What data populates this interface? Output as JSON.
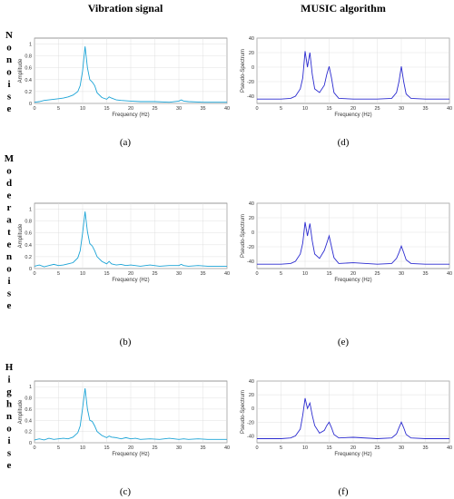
{
  "column_titles": [
    "Vibration signal",
    "MUSIC algorithm"
  ],
  "row_labels": [
    "No noise",
    "Moderate noise",
    "High noise"
  ],
  "captions": [
    "(a)",
    "(b)",
    "(c)",
    "(d)",
    "(e)",
    "(f)"
  ],
  "colors": {
    "vibration": "#1aa3d6",
    "music": "#2b2bd0"
  },
  "chart_data": [
    {
      "id": "a",
      "type": "line",
      "caption": "(a)",
      "xlabel": "Frequency (Hz)",
      "ylabel": "Amplitude",
      "xlim": [
        0,
        40
      ],
      "ylim": [
        0,
        1.1
      ],
      "xticks": [
        0,
        5,
        10,
        15,
        20,
        25,
        30,
        35,
        40
      ],
      "yticks": [
        0,
        0.2,
        0.4,
        0.6,
        0.8,
        1
      ],
      "series": [
        {
          "x": [
            0,
            1,
            2,
            3,
            4,
            5,
            6,
            7,
            8,
            9,
            9.5,
            10,
            10.5,
            11,
            11.5,
            12,
            12.5,
            13,
            14,
            15,
            15.5,
            16,
            17,
            18,
            20,
            22,
            25,
            28,
            30,
            30.5,
            31,
            32,
            35,
            38,
            40
          ],
          "y": [
            0.02,
            0.03,
            0.05,
            0.06,
            0.07,
            0.08,
            0.09,
            0.11,
            0.14,
            0.2,
            0.3,
            0.55,
            0.96,
            0.6,
            0.4,
            0.36,
            0.3,
            0.18,
            0.1,
            0.07,
            0.11,
            0.09,
            0.06,
            0.05,
            0.04,
            0.03,
            0.03,
            0.02,
            0.04,
            0.06,
            0.04,
            0.03,
            0.02,
            0.02,
            0.02
          ]
        }
      ]
    },
    {
      "id": "b",
      "type": "line",
      "caption": "(b)",
      "xlabel": "Frequency (Hz)",
      "ylabel": "Amplitude",
      "xlim": [
        0,
        40
      ],
      "ylim": [
        0,
        1.1
      ],
      "xticks": [
        0,
        5,
        10,
        15,
        20,
        25,
        30,
        35,
        40
      ],
      "yticks": [
        0,
        0.2,
        0.4,
        0.6,
        0.8,
        1
      ],
      "series": [
        {
          "x": [
            0,
            1,
            2,
            3,
            4,
            5,
            6,
            7,
            8,
            9,
            9.5,
            10,
            10.5,
            11,
            11.5,
            12,
            12.5,
            13,
            14,
            15,
            15.5,
            16,
            17,
            18,
            19,
            20,
            22,
            24,
            26,
            28,
            30,
            30.5,
            31,
            32,
            34,
            36,
            38,
            40
          ],
          "y": [
            0.04,
            0.06,
            0.03,
            0.05,
            0.07,
            0.05,
            0.06,
            0.08,
            0.1,
            0.18,
            0.3,
            0.6,
            0.96,
            0.62,
            0.42,
            0.38,
            0.3,
            0.2,
            0.12,
            0.08,
            0.12,
            0.08,
            0.06,
            0.07,
            0.05,
            0.06,
            0.04,
            0.06,
            0.04,
            0.05,
            0.05,
            0.07,
            0.05,
            0.04,
            0.05,
            0.04,
            0.04,
            0.04
          ]
        }
      ]
    },
    {
      "id": "c",
      "type": "line",
      "caption": "(c)",
      "xlabel": "Frequency (Hz)",
      "ylabel": "Amplitude",
      "xlim": [
        0,
        40
      ],
      "ylim": [
        0,
        1.1
      ],
      "xticks": [
        0,
        5,
        10,
        15,
        20,
        25,
        30,
        35,
        40
      ],
      "yticks": [
        0,
        0.2,
        0.4,
        0.6,
        0.8,
        1
      ],
      "series": [
        {
          "x": [
            0,
            1,
            2,
            3,
            4,
            5,
            6,
            7,
            8,
            9,
            9.5,
            10,
            10.5,
            11,
            11.5,
            12,
            12.5,
            13,
            14,
            15,
            15.5,
            16,
            17,
            18,
            19,
            20,
            21,
            22,
            24,
            26,
            28,
            30,
            31,
            32,
            34,
            36,
            38,
            40
          ],
          "y": [
            0.05,
            0.07,
            0.05,
            0.08,
            0.06,
            0.07,
            0.08,
            0.07,
            0.1,
            0.18,
            0.3,
            0.62,
            0.97,
            0.6,
            0.4,
            0.38,
            0.3,
            0.2,
            0.13,
            0.09,
            0.12,
            0.1,
            0.09,
            0.07,
            0.09,
            0.07,
            0.08,
            0.06,
            0.07,
            0.06,
            0.08,
            0.06,
            0.07,
            0.06,
            0.07,
            0.06,
            0.06,
            0.06
          ]
        }
      ]
    },
    {
      "id": "d",
      "type": "line",
      "caption": "(d)",
      "xlabel": "Frequency (Hz)",
      "ylabel": "Pseudo-Spectrum",
      "xlim": [
        0,
        40
      ],
      "ylim": [
        -50,
        40
      ],
      "xticks": [
        0,
        5,
        10,
        15,
        20,
        25,
        30,
        35,
        40
      ],
      "yticks": [
        -40,
        -20,
        0,
        20,
        40
      ],
      "series": [
        {
          "x": [
            0,
            5,
            7,
            8,
            9,
            9.5,
            10,
            10.5,
            11,
            11.5,
            12,
            13,
            14,
            14.5,
            15,
            15.5,
            16,
            17,
            20,
            25,
            28,
            29,
            29.5,
            30,
            30.5,
            31,
            32,
            35,
            40
          ],
          "y": [
            -44,
            -44,
            -43,
            -40,
            -30,
            -15,
            22,
            0,
            20,
            -10,
            -30,
            -35,
            -25,
            -10,
            1,
            -15,
            -35,
            -43,
            -44,
            -44,
            -43,
            -35,
            -20,
            1,
            -20,
            -37,
            -43,
            -44,
            -44
          ]
        }
      ]
    },
    {
      "id": "e",
      "type": "line",
      "caption": "(e)",
      "xlabel": "Frequency (Hz)",
      "ylabel": "Pseudo-Spectrum",
      "xlim": [
        0,
        40
      ],
      "ylim": [
        -50,
        40
      ],
      "xticks": [
        0,
        5,
        10,
        15,
        20,
        25,
        30,
        35,
        40
      ],
      "yticks": [
        -40,
        -20,
        0,
        20,
        40
      ],
      "series": [
        {
          "x": [
            0,
            5,
            7,
            8,
            9,
            9.5,
            10,
            10.5,
            11,
            11.5,
            12,
            13,
            14,
            14.5,
            15,
            15.5,
            16,
            17,
            20,
            25,
            28,
            29,
            29.5,
            30,
            30.5,
            31,
            32,
            35,
            40
          ],
          "y": [
            -44,
            -44,
            -43,
            -40,
            -30,
            -15,
            14,
            -5,
            12,
            -12,
            -30,
            -36,
            -25,
            -15,
            -5,
            -20,
            -35,
            -43,
            -42,
            -44,
            -43,
            -36,
            -28,
            -19,
            -28,
            -38,
            -43,
            -44,
            -44
          ]
        }
      ]
    },
    {
      "id": "f",
      "type": "line",
      "caption": "(f)",
      "xlabel": "Frequency (Hz)",
      "ylabel": "Pseudo-Spectrum",
      "xlim": [
        0,
        40
      ],
      "ylim": [
        -50,
        40
      ],
      "xticks": [
        0,
        5,
        10,
        15,
        20,
        25,
        30,
        35,
        40
      ],
      "yticks": [
        -40,
        -20,
        0,
        20,
        40
      ],
      "series": [
        {
          "x": [
            0,
            5,
            7,
            8,
            9,
            9.5,
            10,
            10.5,
            11,
            11.5,
            12,
            13,
            14,
            14.5,
            15,
            15.5,
            16,
            17,
            20,
            25,
            28,
            29,
            29.5,
            30,
            30.5,
            31,
            32,
            35,
            40
          ],
          "y": [
            -44,
            -44,
            -43,
            -40,
            -30,
            -10,
            15,
            0,
            8,
            -10,
            -25,
            -36,
            -32,
            -25,
            -20,
            -28,
            -38,
            -43,
            -42,
            -44,
            -43,
            -37,
            -28,
            -20,
            -28,
            -38,
            -43,
            -44,
            -44
          ]
        }
      ]
    }
  ]
}
